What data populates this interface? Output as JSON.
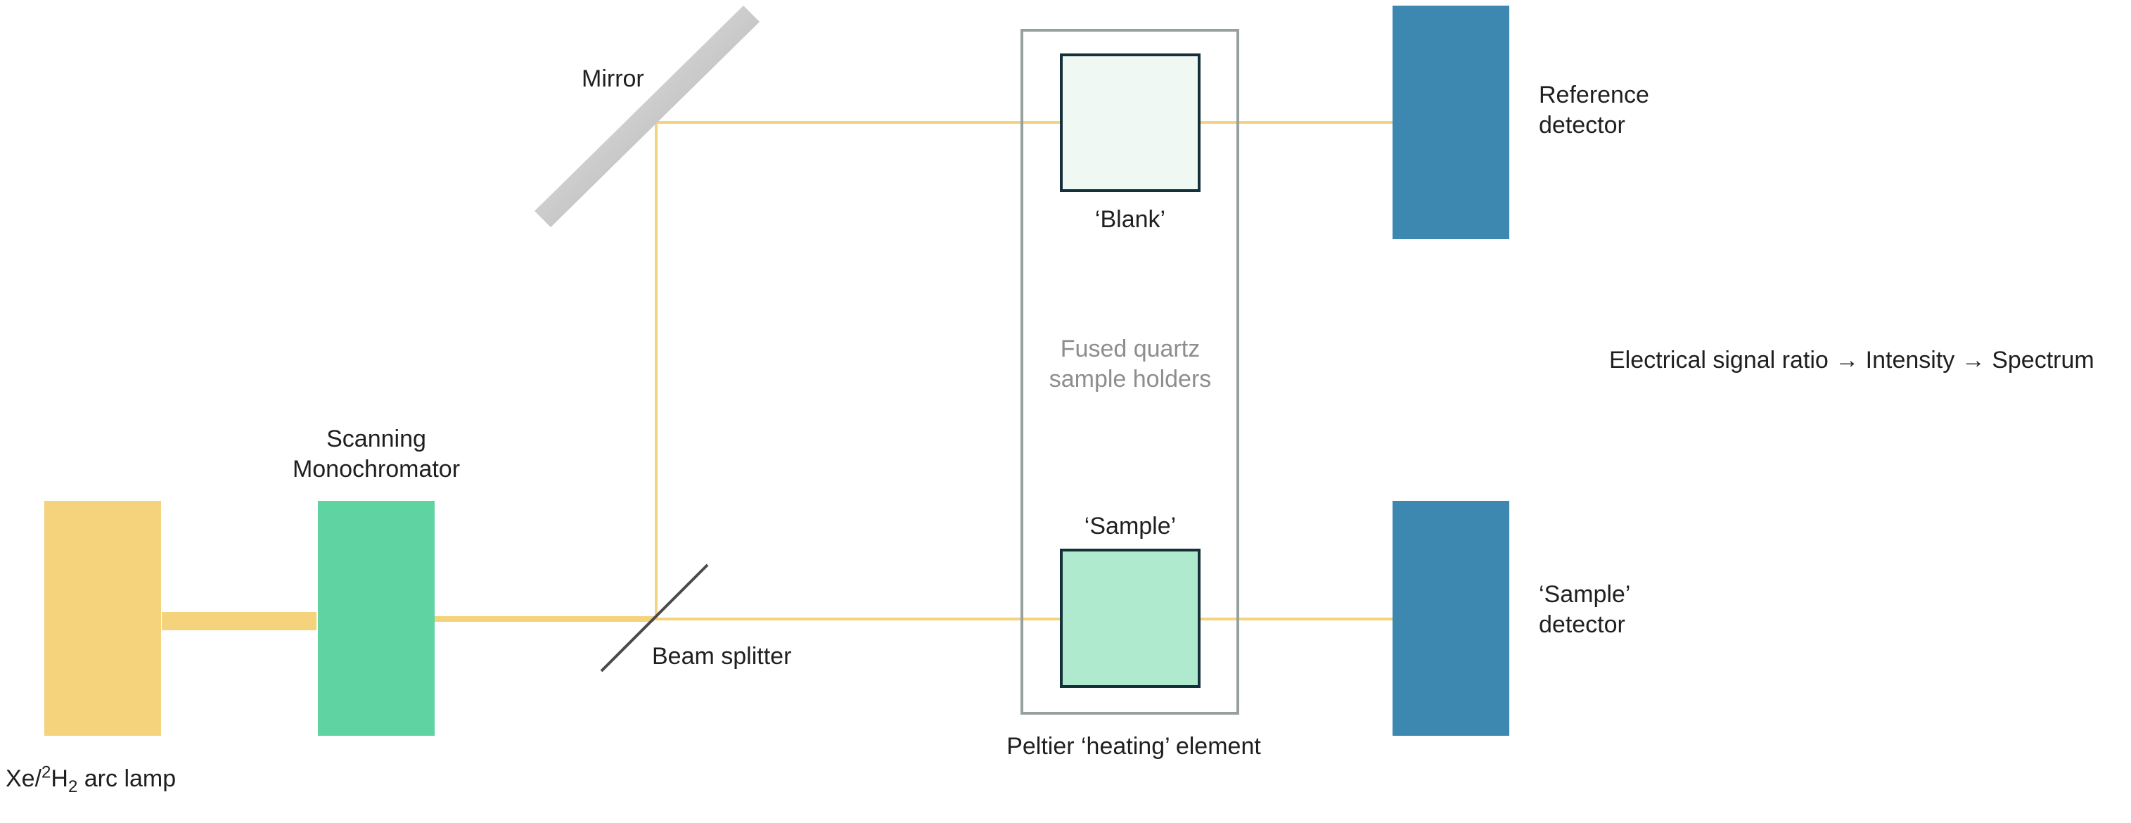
{
  "labels": {
    "lamp_prefix": "Xe/",
    "lamp_sup": "2",
    "lamp_h": "H",
    "lamp_sub": "2",
    "lamp_suffix": " arc lamp",
    "monochromator_line1": "Scanning",
    "monochromator_line2": "Monochromator",
    "mirror": "Mirror",
    "beam_splitter": "Beam splitter",
    "blank": "‘Blank’",
    "sample": "‘Sample’",
    "holders_line1": "Fused quartz",
    "holders_line2": "sample holders",
    "peltier": "Peltier ‘heating’ element",
    "reference_detector_line1": "Reference",
    "reference_detector_line2": "detector",
    "sample_detector_line1": "‘Sample’",
    "sample_detector_line2": "detector",
    "signal_chain": "Electrical signal ratio → Intensity → Spectrum"
  },
  "colors": {
    "lamp": "#f5d37c",
    "monochromator": "#60d3a2",
    "beam": "#f5d37c",
    "detector": "#3d88b0",
    "blank_fill": "#eff8f3",
    "sample_fill": "#b0eace",
    "cuvette_border": "#14303a",
    "holder_border": "#97a19c",
    "splitter": "#4a4a4a",
    "muted_text": "#8e8e8e"
  }
}
